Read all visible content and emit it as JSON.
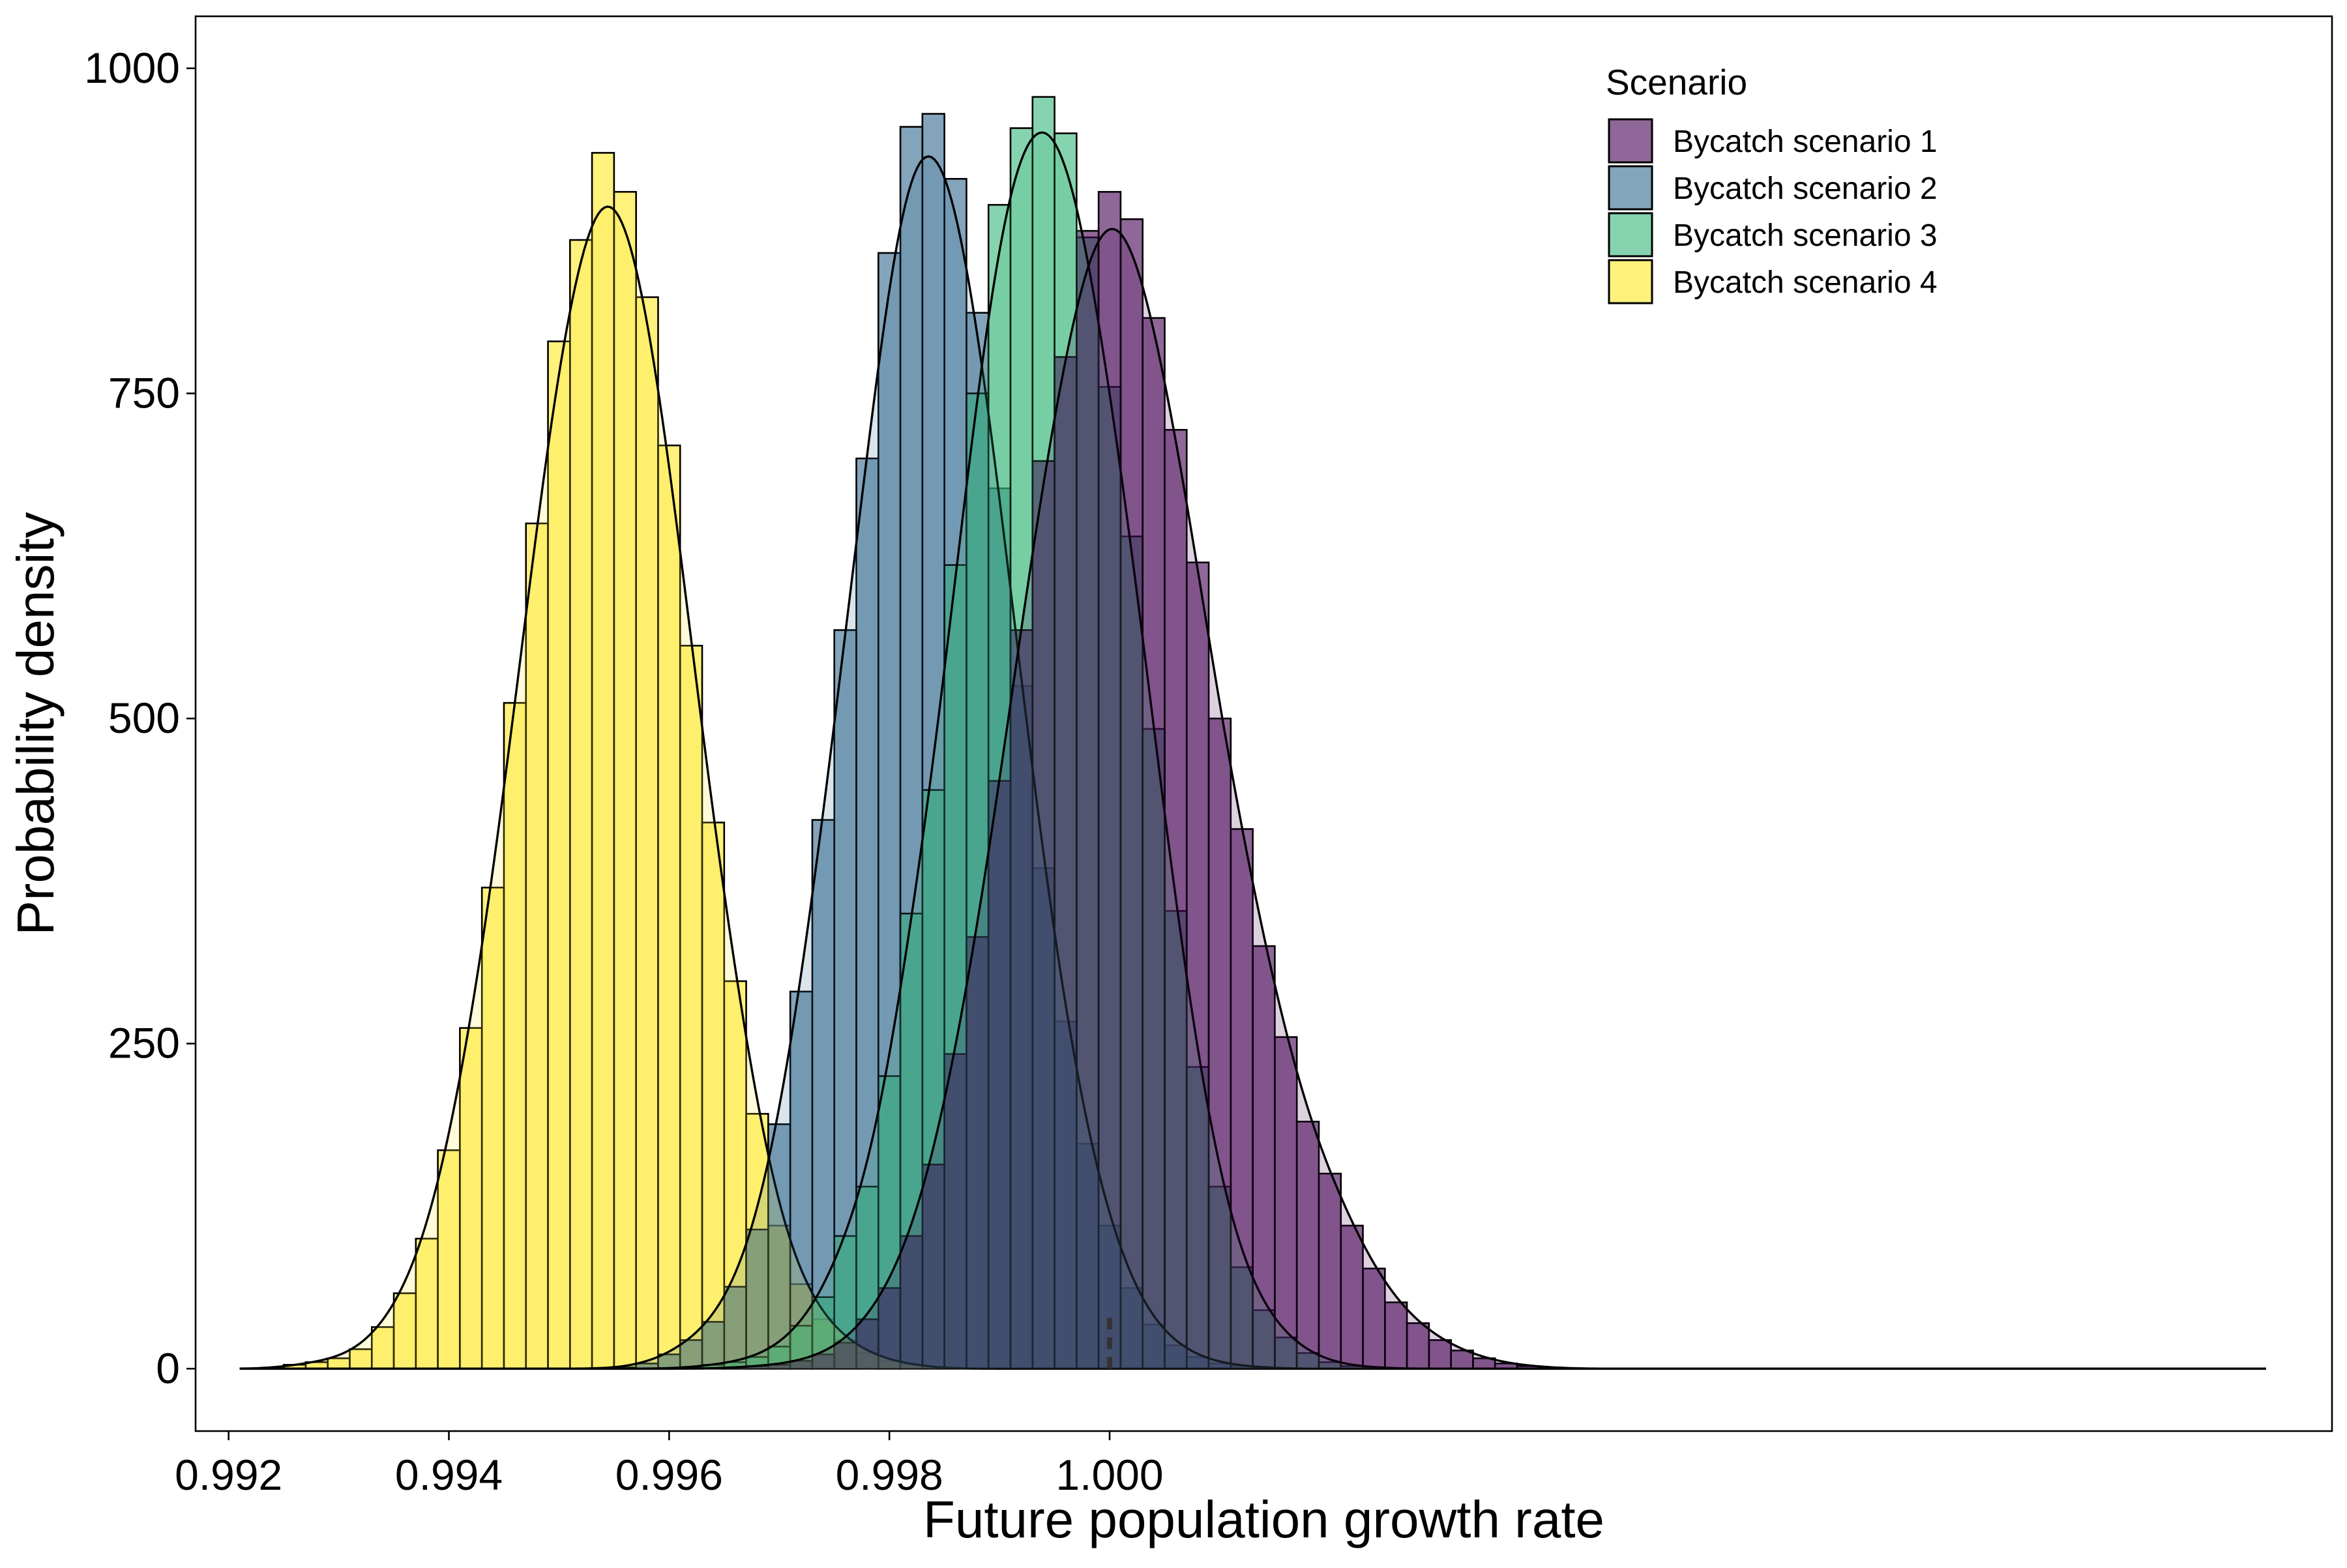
{
  "chart_data": {
    "type": "histogram",
    "xlabel": "Future population growth rate",
    "ylabel": "Probability density",
    "xlim": [
      0.9917,
      1.0111
    ],
    "ylim": [
      -48,
      1040
    ],
    "x_ticks": [
      0.992,
      0.994,
      0.996,
      0.998,
      1.0
    ],
    "x_tick_labels": [
      "0.992",
      "0.994",
      "0.996",
      "0.998",
      "1.000"
    ],
    "y_ticks": [
      0,
      250,
      500,
      750,
      1000
    ],
    "y_tick_labels": [
      "0",
      "250",
      "500",
      "750",
      "1000"
    ],
    "bin_width": 0.0002,
    "grid": false,
    "reference_line": {
      "x": 1.0,
      "style": "dashed"
    },
    "legend": {
      "title": "Scenario",
      "position": "top-right",
      "entries": [
        "Bycatch scenario 1",
        "Bycatch scenario 2",
        "Bycatch scenario 3",
        "Bycatch scenario 4"
      ]
    },
    "series": [
      {
        "name": "Bycatch scenario 1",
        "color": "#440154",
        "fill_opacity": 0.6,
        "bin_start": 0.9961,
        "values": [
          0,
          0,
          1,
          2,
          3,
          6,
          11,
          20,
          38,
          62,
          102,
          157,
          242,
          332,
          452,
          568,
          698,
          778,
          875,
          905,
          884,
          808,
          722,
          620,
          500,
          415,
          325,
          255,
          190,
          150,
          110,
          77,
          51,
          35,
          22,
          14,
          8,
          4,
          2,
          1,
          0,
          0,
          0
        ]
      },
      {
        "name": "Bycatch scenario 2",
        "color": "#31688e",
        "fill_opacity": 0.6,
        "bin_start": 0.9955,
        "values": [
          1,
          4,
          11,
          22,
          36,
          63,
          107,
          188,
          290,
          422,
          568,
          700,
          858,
          955,
          965,
          915,
          812,
          677,
          525,
          385,
          267,
          173,
          110,
          62,
          34,
          18,
          9,
          4,
          2,
          1,
          0
        ]
      },
      {
        "name": "Bycatch scenario 3",
        "color": "#35b779",
        "fill_opacity": 0.6,
        "bin_start": 0.9959,
        "values": [
          0,
          1,
          3,
          5,
          9,
          17,
          33,
          55,
          102,
          140,
          225,
          350,
          445,
          618,
          750,
          895,
          954,
          978,
          950,
          870,
          755,
          640,
          492,
          352,
          232,
          140,
          78,
          45,
          24,
          12,
          5,
          2,
          1,
          0
        ]
      },
      {
        "name": "Bycatch scenario 4",
        "color": "#fde725",
        "fill_opacity": 0.6,
        "bin_start": 0.9925,
        "values": [
          3,
          5,
          8,
          15,
          32,
          58,
          100,
          168,
          262,
          370,
          512,
          650,
          790,
          868,
          935,
          905,
          824,
          710,
          556,
          420,
          298,
          196,
          110,
          65,
          38,
          22,
          12,
          6,
          3,
          1
        ]
      }
    ]
  }
}
